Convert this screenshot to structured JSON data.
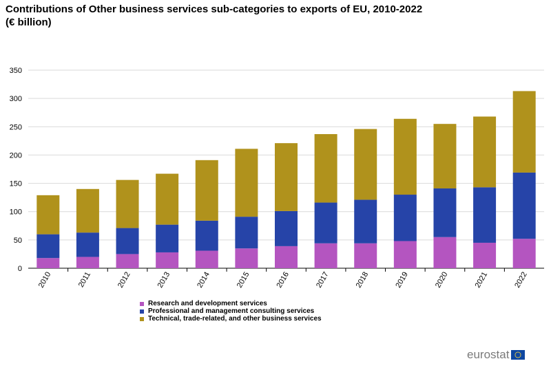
{
  "chart_data": {
    "type": "bar",
    "stacked": true,
    "title": "Contributions of Other business services sub-categories to exports of EU, 2010-2022",
    "subtitle": "(€ billion)",
    "categories": [
      "2010",
      "2011",
      "2012",
      "2013",
      "2014",
      "2015",
      "2016",
      "2017",
      "2018",
      "2019",
      "2020",
      "2021",
      "2022"
    ],
    "series": [
      {
        "name": "Research and development services",
        "color": "#b455c0",
        "values": [
          18,
          20,
          25,
          28,
          31,
          35,
          39,
          44,
          44,
          48,
          55,
          45,
          52
        ]
      },
      {
        "name": "Professional and management consulting services",
        "color": "#2644a8",
        "values": [
          42,
          43,
          46,
          49,
          53,
          56,
          62,
          72,
          77,
          82,
          86,
          98,
          117
        ]
      },
      {
        "name": "Technical, trade-related, and other business services",
        "color": "#b0921c",
        "values": [
          69,
          77,
          85,
          90,
          107,
          120,
          120,
          121,
          125,
          134,
          114,
          125,
          144
        ]
      }
    ],
    "xlabel": "",
    "ylabel": "",
    "ylim": [
      0,
      350
    ],
    "yticks": [
      0,
      50,
      100,
      150,
      200,
      250,
      300,
      350
    ],
    "grid": true,
    "legend_position": "bottom"
  },
  "brand": {
    "name": "eurostat"
  }
}
